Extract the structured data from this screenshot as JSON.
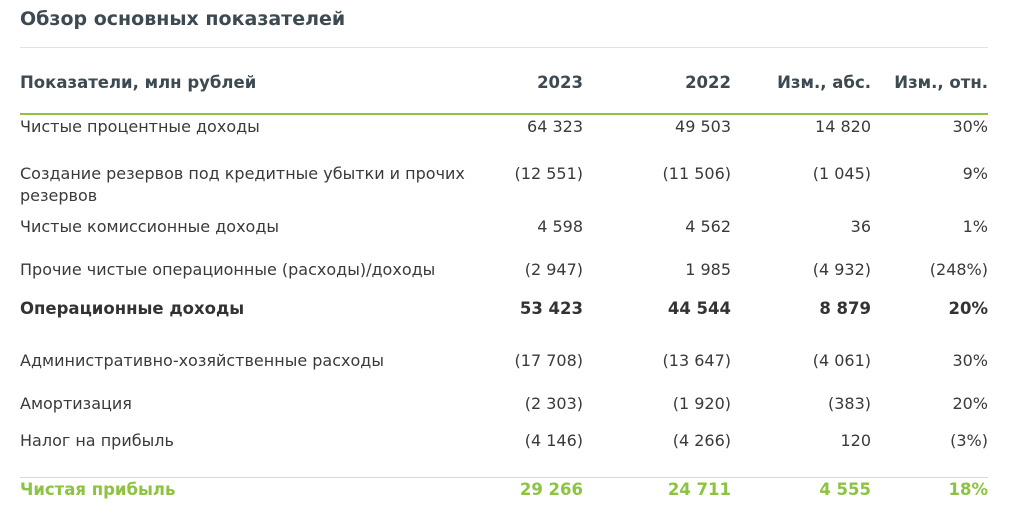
{
  "title": "Обзор основных показателей",
  "table": {
    "headers": {
      "label": "Показатели, млн рублей",
      "y2023": "2023",
      "y2022": "2022",
      "abs": "Изм., абс.",
      "rel": "Изм., отн."
    },
    "rows": [
      {
        "label": "Чистые процентные доходы",
        "y2023": "64 323",
        "y2022": "49 503",
        "abs": "14 820",
        "rel": "30%"
      },
      {
        "label": "Создание резервов под кредитные убытки и прочих резервов",
        "y2023": "(12 551)",
        "y2022": "(11 506)",
        "abs": "(1 045)",
        "rel": "9%"
      },
      {
        "label": "Чистые комиссионные доходы",
        "y2023": "4 598",
        "y2022": "4 562",
        "abs": "36",
        "rel": "1%"
      },
      {
        "label": "Прочие чистые операционные (расходы)/доходы",
        "y2023": "(2 947)",
        "y2022": "1 985",
        "abs": "(4 932)",
        "rel": "(248%)"
      },
      {
        "label": "Операционные доходы",
        "y2023": "53 423",
        "y2022": "44 544",
        "abs": "8 879",
        "rel": "20%"
      },
      {
        "label": "Административно-хозяйственные расходы",
        "y2023": "(17 708)",
        "y2022": "(13 647)",
        "abs": "(4 061)",
        "rel": "30%"
      },
      {
        "label": "Амортизация",
        "y2023": "(2 303)",
        "y2022": "(1 920)",
        "abs": "(383)",
        "rel": "20%"
      },
      {
        "label": "Налог на прибыль",
        "y2023": "(4 146)",
        "y2022": "(4 266)",
        "abs": "120",
        "rel": "(3%)"
      },
      {
        "label": "Чистая прибыль",
        "y2023": "29 266",
        "y2022": "24 711",
        "abs": "4 555",
        "rel": "18%"
      }
    ]
  },
  "colors": {
    "accent_green": "#8cc341",
    "title_color": "#3d4a52"
  }
}
